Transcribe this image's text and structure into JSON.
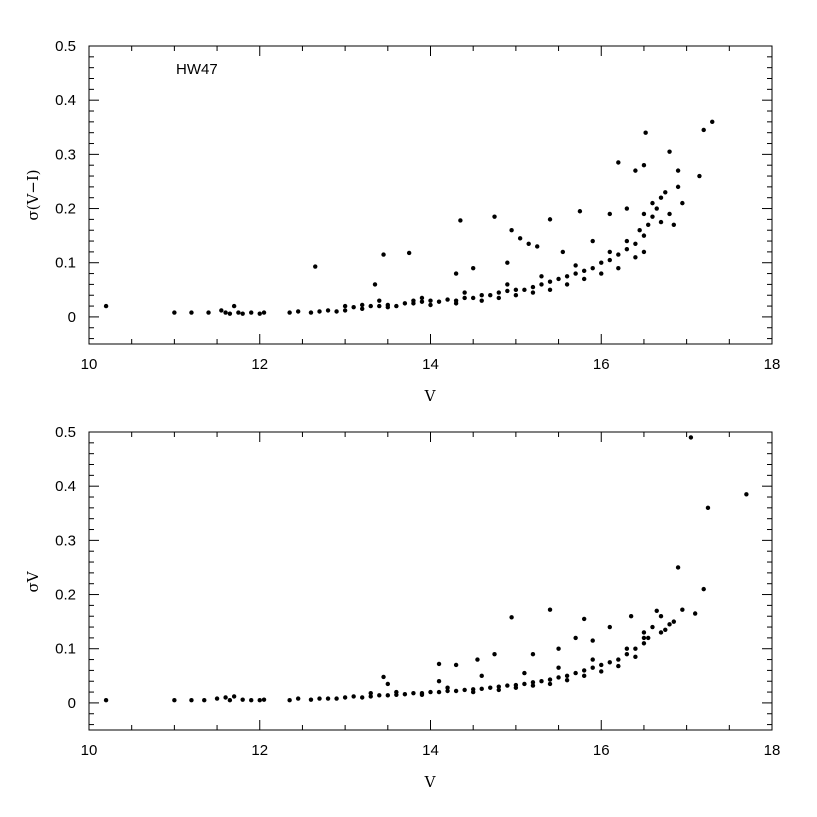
{
  "chart_data": [
    {
      "type": "scatter",
      "xlabel": "V",
      "ylabel": "σ(V−I)",
      "annotation": "HW47",
      "xlim": [
        10,
        18
      ],
      "ylim": [
        -0.05,
        0.5
      ],
      "x_ticks": [
        10,
        12,
        14,
        16,
        18
      ],
      "x_tick_labels": [
        "10",
        "12",
        "14",
        "16",
        "18"
      ],
      "y_ticks": [
        0,
        0.1,
        0.2,
        0.3,
        0.4,
        0.5
      ],
      "y_tick_labels": [
        "0",
        "0.1",
        "0.2",
        "0.3",
        "0.4",
        "0.5"
      ],
      "grid": false,
      "points": [
        [
          10.2,
          0.02
        ],
        [
          11.0,
          0.008
        ],
        [
          11.2,
          0.008
        ],
        [
          11.4,
          0.008
        ],
        [
          11.55,
          0.012
        ],
        [
          11.6,
          0.008
        ],
        [
          11.65,
          0.006
        ],
        [
          11.7,
          0.02
        ],
        [
          11.75,
          0.008
        ],
        [
          11.8,
          0.006
        ],
        [
          11.9,
          0.008
        ],
        [
          12.0,
          0.006
        ],
        [
          12.05,
          0.008
        ],
        [
          12.35,
          0.008
        ],
        [
          12.45,
          0.01
        ],
        [
          12.6,
          0.008
        ],
        [
          12.7,
          0.01
        ],
        [
          12.8,
          0.012
        ],
        [
          12.9,
          0.01
        ],
        [
          13.0,
          0.012
        ],
        [
          13.1,
          0.018
        ],
        [
          13.2,
          0.015
        ],
        [
          13.3,
          0.02
        ],
        [
          13.4,
          0.02
        ],
        [
          13.5,
          0.022
        ],
        [
          13.6,
          0.02
        ],
        [
          13.7,
          0.025
        ],
        [
          13.8,
          0.025
        ],
        [
          13.9,
          0.028
        ],
        [
          14.0,
          0.03
        ],
        [
          14.1,
          0.028
        ],
        [
          14.2,
          0.032
        ],
        [
          14.3,
          0.03
        ],
        [
          14.4,
          0.035
        ],
        [
          14.5,
          0.035
        ],
        [
          14.6,
          0.04
        ],
        [
          14.7,
          0.04
        ],
        [
          14.8,
          0.045
        ],
        [
          14.9,
          0.048
        ],
        [
          15.0,
          0.05
        ],
        [
          15.1,
          0.05
        ],
        [
          15.2,
          0.055
        ],
        [
          15.3,
          0.06
        ],
        [
          15.4,
          0.065
        ],
        [
          15.5,
          0.07
        ],
        [
          15.6,
          0.075
        ],
        [
          15.7,
          0.08
        ],
        [
          15.8,
          0.085
        ],
        [
          15.9,
          0.09
        ],
        [
          16.0,
          0.1
        ],
        [
          16.1,
          0.105
        ],
        [
          16.2,
          0.115
        ],
        [
          16.3,
          0.125
        ],
        [
          16.4,
          0.135
        ],
        [
          16.5,
          0.15
        ],
        [
          13.0,
          0.02
        ],
        [
          13.2,
          0.022
        ],
        [
          13.5,
          0.018
        ],
        [
          13.8,
          0.03
        ],
        [
          14.0,
          0.022
        ],
        [
          14.3,
          0.025
        ],
        [
          14.6,
          0.03
        ],
        [
          14.8,
          0.035
        ],
        [
          15.0,
          0.04
        ],
        [
          15.2,
          0.045
        ],
        [
          15.4,
          0.05
        ],
        [
          15.6,
          0.06
        ],
        [
          15.8,
          0.07
        ],
        [
          16.0,
          0.08
        ],
        [
          16.2,
          0.09
        ],
        [
          16.4,
          0.11
        ],
        [
          16.5,
          0.12
        ],
        [
          13.4,
          0.03
        ],
        [
          13.9,
          0.035
        ],
        [
          14.4,
          0.045
        ],
        [
          14.9,
          0.06
        ],
        [
          15.3,
          0.075
        ],
        [
          15.7,
          0.095
        ],
        [
          16.1,
          0.12
        ],
        [
          16.3,
          0.14
        ],
        [
          16.45,
          0.16
        ],
        [
          12.65,
          0.093
        ],
        [
          13.35,
          0.06
        ],
        [
          13.45,
          0.115
        ],
        [
          13.75,
          0.118
        ],
        [
          14.3,
          0.08
        ],
        [
          14.35,
          0.178
        ],
        [
          14.5,
          0.09
        ],
        [
          14.75,
          0.185
        ],
        [
          14.9,
          0.1
        ],
        [
          14.95,
          0.16
        ],
        [
          15.05,
          0.145
        ],
        [
          15.15,
          0.135
        ],
        [
          15.25,
          0.13
        ],
        [
          15.4,
          0.18
        ],
        [
          15.55,
          0.12
        ],
        [
          15.75,
          0.195
        ],
        [
          15.9,
          0.14
        ],
        [
          16.1,
          0.19
        ],
        [
          16.2,
          0.285
        ],
        [
          16.3,
          0.2
        ],
        [
          16.4,
          0.27
        ],
        [
          16.5,
          0.28
        ],
        [
          16.52,
          0.34
        ],
        [
          16.6,
          0.21
        ],
        [
          16.7,
          0.22
        ],
        [
          16.8,
          0.305
        ],
        [
          16.85,
          0.17
        ],
        [
          16.9,
          0.24
        ],
        [
          16.95,
          0.21
        ],
        [
          16.9,
          0.27
        ],
        [
          17.15,
          0.26
        ],
        [
          17.2,
          0.345
        ],
        [
          17.3,
          0.36
        ],
        [
          16.5,
          0.19
        ],
        [
          16.55,
          0.17
        ],
        [
          16.6,
          0.185
        ],
        [
          16.65,
          0.2
        ],
        [
          16.7,
          0.175
        ],
        [
          16.75,
          0.23
        ],
        [
          16.8,
          0.19
        ]
      ]
    },
    {
      "type": "scatter",
      "xlabel": "V",
      "ylabel": "σV",
      "xlim": [
        10,
        18
      ],
      "ylim": [
        -0.05,
        0.5
      ],
      "x_ticks": [
        10,
        12,
        14,
        16,
        18
      ],
      "x_tick_labels": [
        "10",
        "12",
        "14",
        "16",
        "18"
      ],
      "y_ticks": [
        0,
        0.1,
        0.2,
        0.3,
        0.4,
        0.5
      ],
      "y_tick_labels": [
        "0",
        "0.1",
        "0.2",
        "0.3",
        "0.4",
        "0.5"
      ],
      "grid": false,
      "points": [
        [
          10.2,
          0.005
        ],
        [
          11.0,
          0.005
        ],
        [
          11.2,
          0.005
        ],
        [
          11.35,
          0.005
        ],
        [
          11.5,
          0.008
        ],
        [
          11.6,
          0.01
        ],
        [
          11.65,
          0.005
        ],
        [
          11.7,
          0.012
        ],
        [
          11.8,
          0.006
        ],
        [
          11.9,
          0.005
        ],
        [
          12.0,
          0.005
        ],
        [
          12.05,
          0.006
        ],
        [
          12.35,
          0.005
        ],
        [
          12.45,
          0.008
        ],
        [
          12.6,
          0.006
        ],
        [
          12.7,
          0.008
        ],
        [
          12.8,
          0.008
        ],
        [
          12.9,
          0.008
        ],
        [
          13.0,
          0.01
        ],
        [
          13.1,
          0.012
        ],
        [
          13.2,
          0.01
        ],
        [
          13.3,
          0.012
        ],
        [
          13.4,
          0.014
        ],
        [
          13.5,
          0.014
        ],
        [
          13.6,
          0.015
        ],
        [
          13.7,
          0.016
        ],
        [
          13.8,
          0.018
        ],
        [
          13.9,
          0.018
        ],
        [
          14.0,
          0.02
        ],
        [
          14.1,
          0.02
        ],
        [
          14.2,
          0.022
        ],
        [
          14.3,
          0.022
        ],
        [
          14.4,
          0.024
        ],
        [
          14.5,
          0.025
        ],
        [
          14.6,
          0.026
        ],
        [
          14.7,
          0.028
        ],
        [
          14.8,
          0.03
        ],
        [
          14.9,
          0.032
        ],
        [
          15.0,
          0.033
        ],
        [
          15.1,
          0.035
        ],
        [
          15.2,
          0.038
        ],
        [
          15.3,
          0.04
        ],
        [
          15.4,
          0.043
        ],
        [
          15.5,
          0.047
        ],
        [
          15.6,
          0.05
        ],
        [
          15.7,
          0.055
        ],
        [
          15.8,
          0.06
        ],
        [
          15.9,
          0.065
        ],
        [
          16.0,
          0.07
        ],
        [
          16.1,
          0.075
        ],
        [
          16.2,
          0.08
        ],
        [
          16.3,
          0.09
        ],
        [
          16.4,
          0.1
        ],
        [
          16.5,
          0.11
        ],
        [
          13.3,
          0.018
        ],
        [
          13.6,
          0.02
        ],
        [
          13.9,
          0.015
        ],
        [
          14.2,
          0.028
        ],
        [
          14.5,
          0.02
        ],
        [
          14.8,
          0.024
        ],
        [
          15.0,
          0.028
        ],
        [
          15.2,
          0.032
        ],
        [
          15.4,
          0.035
        ],
        [
          15.6,
          0.042
        ],
        [
          15.8,
          0.05
        ],
        [
          16.0,
          0.058
        ],
        [
          16.2,
          0.068
        ],
        [
          16.4,
          0.085
        ],
        [
          13.5,
          0.035
        ],
        [
          14.1,
          0.04
        ],
        [
          14.6,
          0.05
        ],
        [
          15.1,
          0.055
        ],
        [
          15.5,
          0.065
        ],
        [
          15.9,
          0.08
        ],
        [
          16.3,
          0.1
        ],
        [
          16.5,
          0.12
        ],
        [
          13.45,
          0.048
        ],
        [
          14.1,
          0.072
        ],
        [
          14.3,
          0.07
        ],
        [
          14.55,
          0.08
        ],
        [
          14.75,
          0.09
        ],
        [
          14.95,
          0.158
        ],
        [
          15.2,
          0.09
        ],
        [
          15.4,
          0.172
        ],
        [
          15.5,
          0.1
        ],
        [
          15.7,
          0.12
        ],
        [
          15.8,
          0.155
        ],
        [
          15.9,
          0.115
        ],
        [
          16.1,
          0.14
        ],
        [
          16.35,
          0.16
        ],
        [
          16.5,
          0.13
        ],
        [
          16.55,
          0.12
        ],
        [
          16.65,
          0.17
        ],
        [
          16.7,
          0.13
        ],
        [
          16.8,
          0.145
        ],
        [
          16.9,
          0.25
        ],
        [
          16.95,
          0.172
        ],
        [
          17.1,
          0.165
        ],
        [
          17.2,
          0.21
        ],
        [
          17.25,
          0.36
        ],
        [
          17.05,
          0.49
        ],
        [
          17.7,
          0.385
        ],
        [
          16.6,
          0.14
        ],
        [
          16.7,
          0.16
        ],
        [
          16.75,
          0.135
        ],
        [
          16.85,
          0.15
        ]
      ]
    }
  ]
}
